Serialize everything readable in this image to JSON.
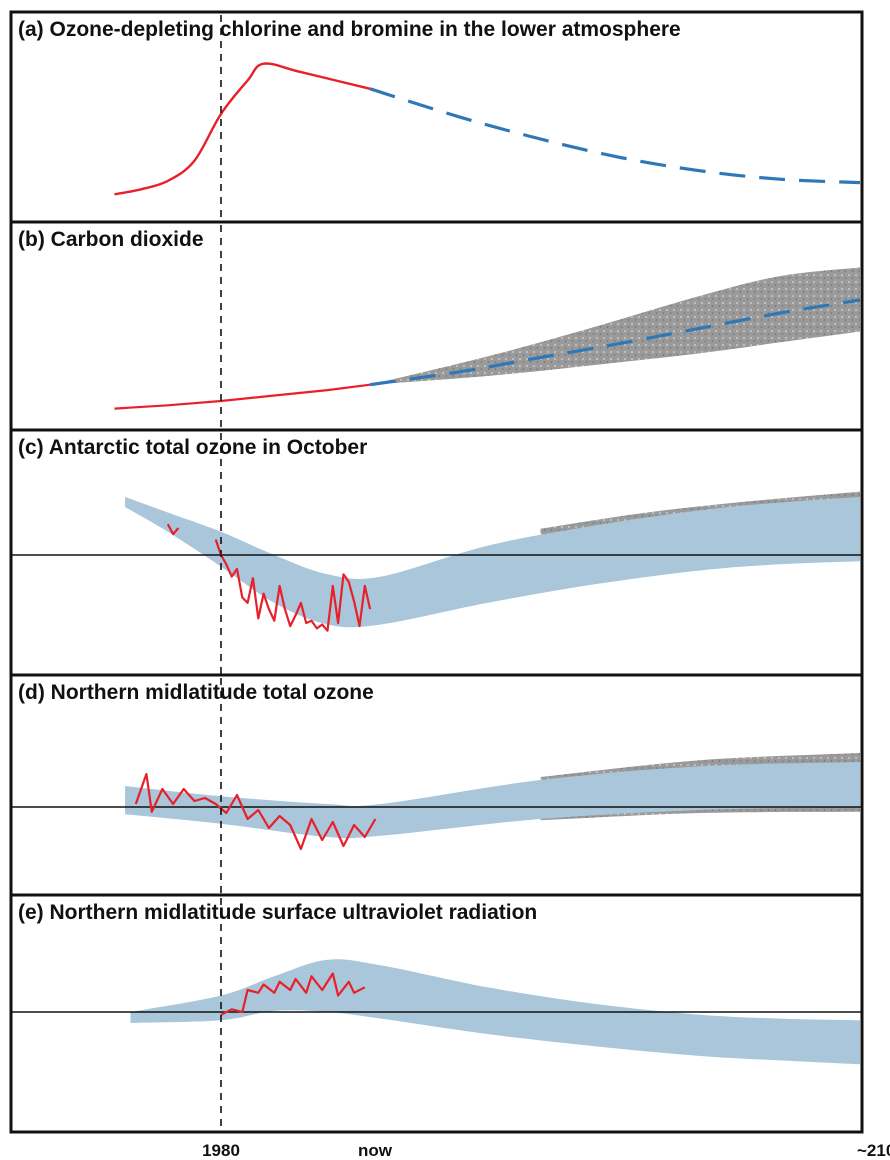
{
  "colors": {
    "observed": "#e8202a",
    "projected": "#2f78b8",
    "projection_band": "#a9c6da",
    "uncertainty_band": "#9a9a9a",
    "frame": "#111111"
  },
  "x_axis": {
    "ticks": [
      {
        "label": "1980",
        "year": 1980
      },
      {
        "label": "now",
        "year": 2008
      },
      {
        "label": "~2100",
        "year": 2100
      }
    ]
  },
  "chart_data": [
    {
      "type": "line",
      "title": "(a) Ozone-depleting chlorine and bromine in the lower atmosphere",
      "reference_line": false,
      "observed": [
        [
          1960,
          0.22
        ],
        [
          1965,
          0.25
        ],
        [
          1970,
          0.3
        ],
        [
          1975,
          0.42
        ],
        [
          1980,
          0.7
        ],
        [
          1985,
          0.9
        ],
        [
          1988,
          1.0
        ],
        [
          1995,
          0.95
        ],
        [
          2008,
          0.85
        ]
      ],
      "projected": [
        [
          2008,
          0.85
        ],
        [
          2025,
          0.68
        ],
        [
          2040,
          0.55
        ],
        [
          2055,
          0.44
        ],
        [
          2070,
          0.36
        ],
        [
          2085,
          0.31
        ],
        [
          2100,
          0.29
        ]
      ]
    },
    {
      "type": "area",
      "title": "(b) Carbon dioxide",
      "reference_line": false,
      "observed": [
        [
          1960,
          0.0
        ],
        [
          1970,
          0.03
        ],
        [
          1980,
          0.07
        ],
        [
          1990,
          0.12
        ],
        [
          2000,
          0.17
        ],
        [
          2008,
          0.22
        ]
      ],
      "projected": [
        [
          2008,
          0.22
        ],
        [
          2025,
          0.34
        ],
        [
          2040,
          0.47
        ],
        [
          2055,
          0.6
        ],
        [
          2070,
          0.74
        ],
        [
          2085,
          0.88
        ],
        [
          2100,
          1.0
        ]
      ],
      "uncertainty_upper": [
        [
          2008,
          0.22
        ],
        [
          2030,
          0.48
        ],
        [
          2050,
          0.75
        ],
        [
          2070,
          1.04
        ],
        [
          2085,
          1.22
        ],
        [
          2100,
          1.3
        ]
      ],
      "uncertainty_lower": [
        [
          2008,
          0.22
        ],
        [
          2030,
          0.3
        ],
        [
          2050,
          0.4
        ],
        [
          2070,
          0.51
        ],
        [
          2085,
          0.61
        ],
        [
          2100,
          0.71
        ]
      ]
    },
    {
      "type": "area",
      "title": "(c) Antarctic total ozone in October",
      "reference_line": true,
      "observed": [
        [
          1970,
          0.4
        ],
        [
          1971,
          0.27
        ],
        [
          1972,
          0.35
        ],
        [
          1979,
          0.2
        ],
        [
          1980,
          0.0
        ],
        [
          1981,
          -0.12
        ],
        [
          1982,
          -0.28
        ],
        [
          1983,
          -0.18
        ],
        [
          1984,
          -0.55
        ],
        [
          1985,
          -0.62
        ],
        [
          1986,
          -0.3
        ],
        [
          1987,
          -0.82
        ],
        [
          1988,
          -0.5
        ],
        [
          1989,
          -0.7
        ],
        [
          1990,
          -0.85
        ],
        [
          1991,
          -0.4
        ],
        [
          1992,
          -0.7
        ],
        [
          1993,
          -0.92
        ],
        [
          1994,
          -0.78
        ],
        [
          1995,
          -0.62
        ],
        [
          1996,
          -0.88
        ],
        [
          1997,
          -0.85
        ],
        [
          1998,
          -0.95
        ],
        [
          1999,
          -0.9
        ],
        [
          2000,
          -0.98
        ],
        [
          2001,
          -0.4
        ],
        [
          2002,
          -0.88
        ],
        [
          2003,
          -0.25
        ],
        [
          2004,
          -0.35
        ],
        [
          2005,
          -0.6
        ],
        [
          2006,
          -0.92
        ],
        [
          2007,
          -0.4
        ],
        [
          2008,
          -0.7
        ]
      ],
      "band_upper": [
        [
          1962,
          0.75
        ],
        [
          1970,
          0.55
        ],
        [
          1980,
          0.3
        ],
        [
          1990,
          0.0
        ],
        [
          2000,
          -0.25
        ],
        [
          2010,
          -0.28
        ],
        [
          2030,
          0.12
        ],
        [
          2050,
          0.38
        ],
        [
          2070,
          0.58
        ],
        [
          2085,
          0.68
        ],
        [
          2100,
          0.75
        ]
      ],
      "band_lower": [
        [
          1962,
          0.62
        ],
        [
          1970,
          0.3
        ],
        [
          1980,
          -0.15
        ],
        [
          1990,
          -0.62
        ],
        [
          2000,
          -0.9
        ],
        [
          2010,
          -0.9
        ],
        [
          2030,
          -0.62
        ],
        [
          2050,
          -0.38
        ],
        [
          2070,
          -0.2
        ],
        [
          2085,
          -0.12
        ],
        [
          2100,
          -0.08
        ]
      ],
      "uncertainty_upper": [
        [
          2040,
          0.34
        ],
        [
          2060,
          0.55
        ],
        [
          2080,
          0.7
        ],
        [
          2100,
          0.82
        ]
      ],
      "uncertainty_lower": [
        [
          2040,
          -0.35
        ],
        [
          2060,
          -0.2
        ],
        [
          2080,
          -0.1
        ],
        [
          2100,
          0.0
        ]
      ]
    },
    {
      "type": "area",
      "title": "(d) Northern midlatitude total ozone",
      "reference_line": true,
      "observed": [
        [
          1964,
          0.05
        ],
        [
          1966,
          0.55
        ],
        [
          1967,
          -0.08
        ],
        [
          1969,
          0.3
        ],
        [
          1971,
          0.05
        ],
        [
          1973,
          0.3
        ],
        [
          1975,
          0.1
        ],
        [
          1977,
          0.15
        ],
        [
          1979,
          0.05
        ],
        [
          1981,
          -0.1
        ],
        [
          1983,
          0.2
        ],
        [
          1985,
          -0.2
        ],
        [
          1987,
          -0.05
        ],
        [
          1989,
          -0.35
        ],
        [
          1991,
          -0.15
        ],
        [
          1993,
          -0.3
        ],
        [
          1995,
          -0.7
        ],
        [
          1997,
          -0.2
        ],
        [
          1999,
          -0.55
        ],
        [
          2001,
          -0.25
        ],
        [
          2003,
          -0.65
        ],
        [
          2005,
          -0.3
        ],
        [
          2007,
          -0.5
        ],
        [
          2009,
          -0.2
        ]
      ],
      "band_upper": [
        [
          1962,
          0.35
        ],
        [
          1980,
          0.18
        ],
        [
          2000,
          0.05
        ],
        [
          2010,
          0.05
        ],
        [
          2040,
          0.45
        ],
        [
          2070,
          0.68
        ],
        [
          2100,
          0.75
        ]
      ],
      "band_lower": [
        [
          1962,
          -0.12
        ],
        [
          1980,
          -0.28
        ],
        [
          2000,
          -0.5
        ],
        [
          2010,
          -0.48
        ],
        [
          2040,
          -0.2
        ],
        [
          2070,
          -0.05
        ],
        [
          2100,
          0.0
        ]
      ],
      "uncertainty_upper": [
        [
          2040,
          0.5
        ],
        [
          2070,
          0.78
        ],
        [
          2100,
          0.9
        ]
      ],
      "uncertainty_lower": [
        [
          2040,
          -0.22
        ],
        [
          2070,
          -0.1
        ],
        [
          2100,
          -0.08
        ]
      ]
    },
    {
      "type": "area",
      "title": "(e) Northern midlatitude surface ultraviolet radiation",
      "reference_line": true,
      "observed": [
        [
          1980,
          -0.05
        ],
        [
          1982,
          0.05
        ],
        [
          1984,
          0.0
        ],
        [
          1985,
          0.4
        ],
        [
          1987,
          0.35
        ],
        [
          1988,
          0.5
        ],
        [
          1990,
          0.35
        ],
        [
          1991,
          0.55
        ],
        [
          1993,
          0.4
        ],
        [
          1994,
          0.6
        ],
        [
          1996,
          0.35
        ],
        [
          1997,
          0.65
        ],
        [
          1999,
          0.4
        ],
        [
          2001,
          0.7
        ],
        [
          2002,
          0.3
        ],
        [
          2004,
          0.55
        ],
        [
          2005,
          0.35
        ],
        [
          2007,
          0.45
        ]
      ],
      "band_upper": [
        [
          1963,
          0.0
        ],
        [
          1980,
          0.3
        ],
        [
          1990,
          0.65
        ],
        [
          2000,
          0.95
        ],
        [
          2010,
          0.85
        ],
        [
          2030,
          0.45
        ],
        [
          2050,
          0.15
        ],
        [
          2070,
          -0.05
        ],
        [
          2085,
          -0.12
        ],
        [
          2100,
          -0.15
        ]
      ],
      "band_lower": [
        [
          1963,
          -0.2
        ],
        [
          1980,
          -0.15
        ],
        [
          1990,
          0.02
        ],
        [
          2000,
          0.0
        ],
        [
          2010,
          -0.12
        ],
        [
          2030,
          -0.4
        ],
        [
          2050,
          -0.62
        ],
        [
          2070,
          -0.8
        ],
        [
          2085,
          -0.88
        ],
        [
          2100,
          -0.95
        ]
      ]
    }
  ]
}
